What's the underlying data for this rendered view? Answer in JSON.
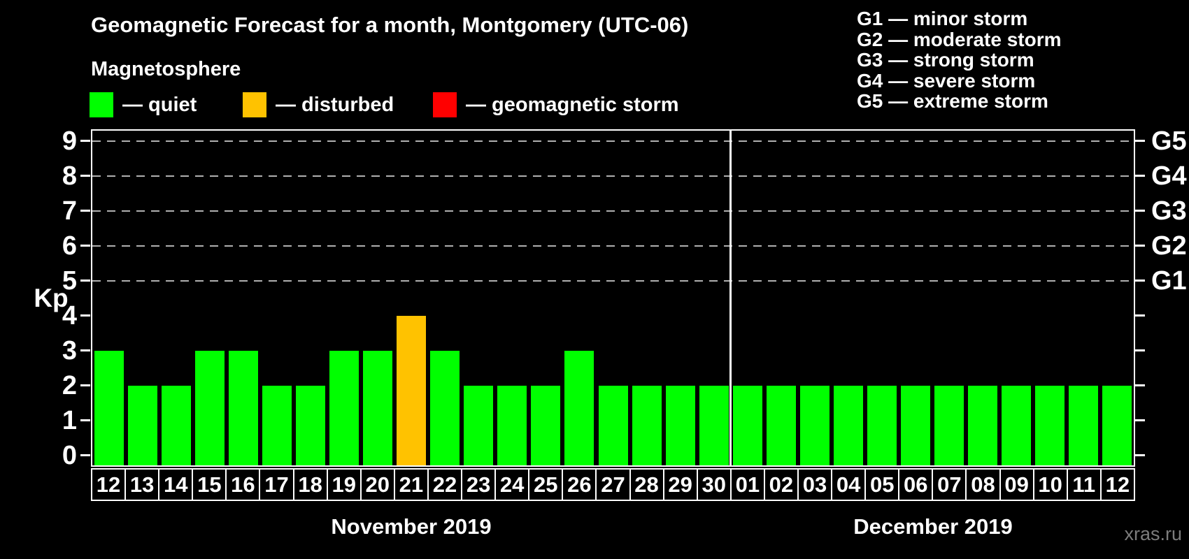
{
  "title": "Geomagnetic Forecast for a month, Montgomery (UTC-06)",
  "subtitle": "Magnetosphere",
  "legend": [
    {
      "id": "quiet",
      "label": "— quiet",
      "color": "#00ff00"
    },
    {
      "id": "disturbed",
      "label": "— disturbed",
      "color": "#ffc200"
    },
    {
      "id": "storm",
      "label": "— geomagnetic storm",
      "color": "#ff0000"
    }
  ],
  "storm_scale_legend": [
    "G1 — minor storm",
    "G2 — moderate storm",
    "G3 — strong storm",
    "G4 — severe storm",
    "G5 — extreme storm"
  ],
  "watermark": "xras.ru",
  "chart_data": {
    "type": "bar",
    "title": "Geomagnetic Forecast for a month, Montgomery (UTC-06)",
    "ylabel": "Kp",
    "ylim": [
      0,
      9
    ],
    "yticks": [
      0,
      1,
      2,
      3,
      4,
      5,
      6,
      7,
      8,
      9
    ],
    "grid": "horizontal dashed lines at Kp 5-9 only",
    "legend_position": "top-left",
    "right_axis_labels": [
      {
        "level": 5,
        "label": "G1"
      },
      {
        "level": 6,
        "label": "G2"
      },
      {
        "level": 7,
        "label": "G3"
      },
      {
        "level": 8,
        "label": "G4"
      },
      {
        "level": 9,
        "label": "G5"
      }
    ],
    "status_colors": {
      "quiet": "#00ff00",
      "disturbed": "#ffc200",
      "storm": "#ff0000"
    },
    "months": [
      {
        "label": "November 2019",
        "bars": [
          {
            "day": "12",
            "kp": 3,
            "status": "quiet"
          },
          {
            "day": "13",
            "kp": 2,
            "status": "quiet"
          },
          {
            "day": "14",
            "kp": 2,
            "status": "quiet"
          },
          {
            "day": "15",
            "kp": 3,
            "status": "quiet"
          },
          {
            "day": "16",
            "kp": 3,
            "status": "quiet"
          },
          {
            "day": "17",
            "kp": 2,
            "status": "quiet"
          },
          {
            "day": "18",
            "kp": 2,
            "status": "quiet"
          },
          {
            "day": "19",
            "kp": 3,
            "status": "quiet"
          },
          {
            "day": "20",
            "kp": 3,
            "status": "quiet"
          },
          {
            "day": "21",
            "kp": 4,
            "status": "disturbed"
          },
          {
            "day": "22",
            "kp": 3,
            "status": "quiet"
          },
          {
            "day": "23",
            "kp": 2,
            "status": "quiet"
          },
          {
            "day": "24",
            "kp": 2,
            "status": "quiet"
          },
          {
            "day": "25",
            "kp": 2,
            "status": "quiet"
          },
          {
            "day": "26",
            "kp": 3,
            "status": "quiet"
          },
          {
            "day": "27",
            "kp": 2,
            "status": "quiet"
          },
          {
            "day": "28",
            "kp": 2,
            "status": "quiet"
          },
          {
            "day": "29",
            "kp": 2,
            "status": "quiet"
          },
          {
            "day": "30",
            "kp": 2,
            "status": "quiet"
          }
        ]
      },
      {
        "label": "December 2019",
        "bars": [
          {
            "day": "01",
            "kp": 2,
            "status": "quiet"
          },
          {
            "day": "02",
            "kp": 2,
            "status": "quiet"
          },
          {
            "day": "03",
            "kp": 2,
            "status": "quiet"
          },
          {
            "day": "04",
            "kp": 2,
            "status": "quiet"
          },
          {
            "day": "05",
            "kp": 2,
            "status": "quiet"
          },
          {
            "day": "06",
            "kp": 2,
            "status": "quiet"
          },
          {
            "day": "07",
            "kp": 2,
            "status": "quiet"
          },
          {
            "day": "08",
            "kp": 2,
            "status": "quiet"
          },
          {
            "day": "09",
            "kp": 2,
            "status": "quiet"
          },
          {
            "day": "10",
            "kp": 2,
            "status": "quiet"
          },
          {
            "day": "11",
            "kp": 2,
            "status": "quiet"
          },
          {
            "day": "12",
            "kp": 2,
            "status": "quiet"
          }
        ]
      }
    ]
  }
}
